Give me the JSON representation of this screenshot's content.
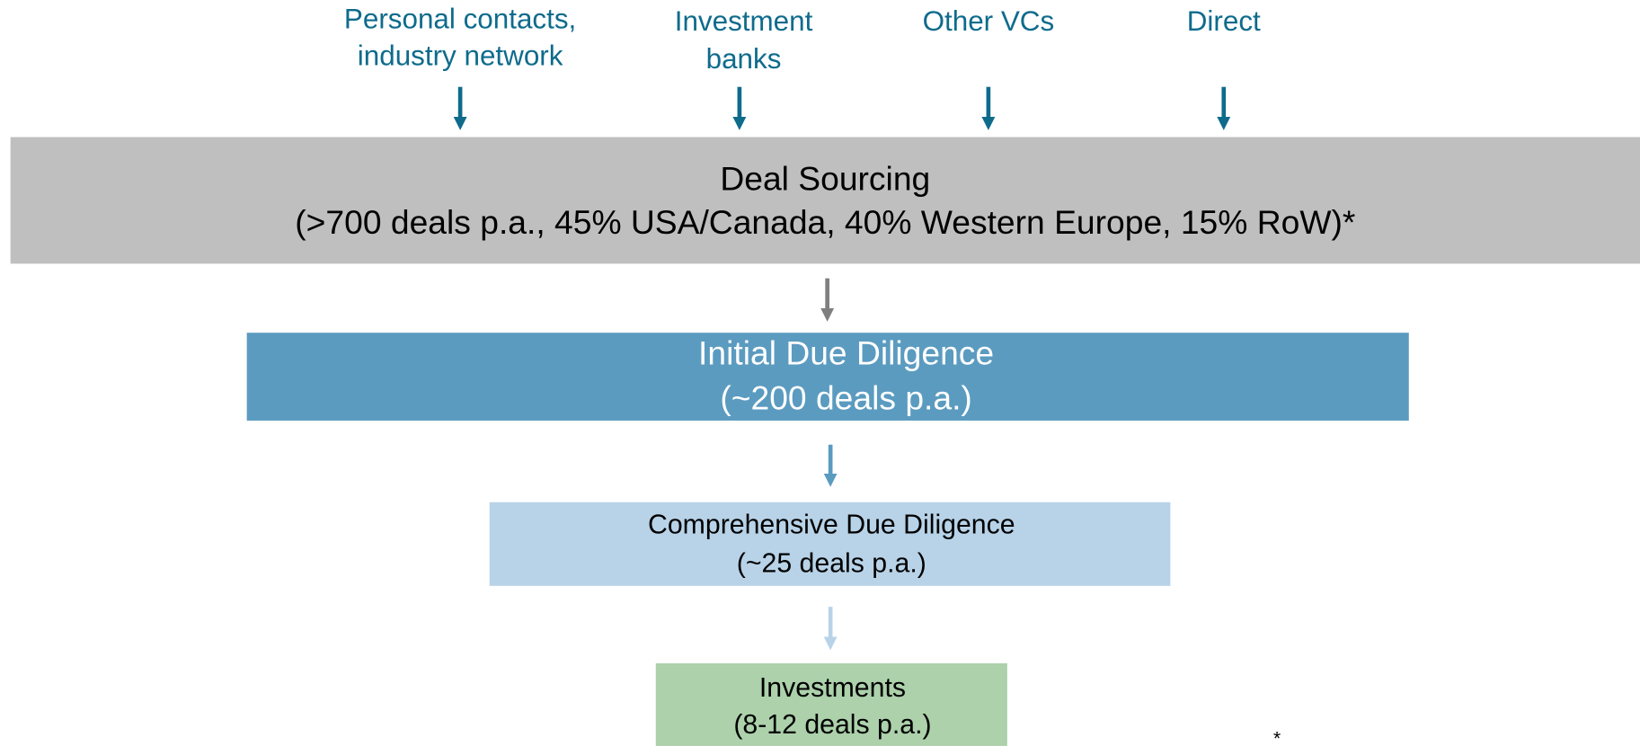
{
  "sources": [
    {
      "lines": [
        "Personal contacts,",
        "industry network"
      ]
    },
    {
      "lines": [
        "Investment",
        "banks"
      ]
    },
    {
      "lines": [
        "Other VCs"
      ]
    },
    {
      "lines": [
        "Direct"
      ]
    }
  ],
  "stages": [
    {
      "lines": [
        "Deal Sourcing",
        "(>700 deals p.a., 45% USA/Canada, 40% Western Europe, 15% RoW)*"
      ]
    },
    {
      "lines": [
        "Initial Due Diligence",
        "(~200 deals p.a.)"
      ]
    },
    {
      "lines": [
        "Comprehensive Due Diligence",
        "(~25 deals p.a.)"
      ]
    },
    {
      "lines": [
        "Investments",
        "(8-12 deals p.a.)"
      ]
    }
  ],
  "footnote": "*"
}
